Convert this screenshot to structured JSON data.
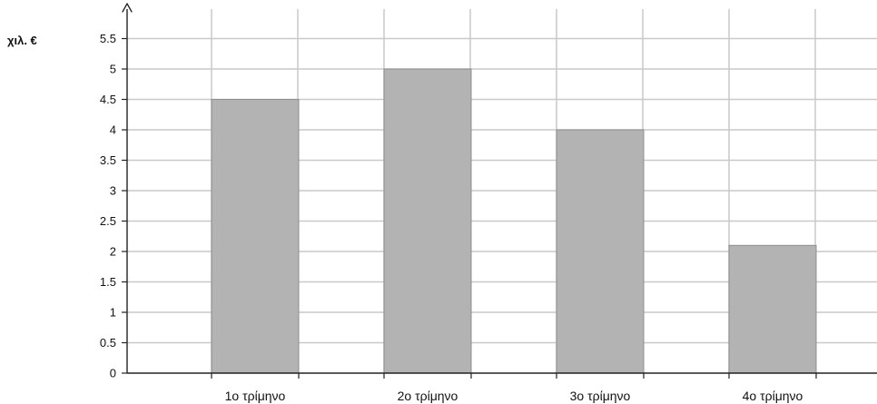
{
  "chart_data": {
    "type": "bar",
    "categories": [
      "1ο τρίμηνο",
      "2ο τρίμηνο",
      "3ο τρίμηνο",
      "4ο τρίμηνο"
    ],
    "values": [
      4.5,
      5,
      4,
      2.1
    ],
    "ylabel": "χιλ. €",
    "ylim": [
      0,
      5.5
    ],
    "yticks": [
      "0",
      "0.5",
      "1",
      "1.5",
      "2",
      "2.5",
      "3",
      "3.5",
      "4",
      "4.5",
      "5",
      "5.5"
    ],
    "grid": true
  },
  "colors": {
    "bar_fill": "#b3b3b3",
    "bar_edge": "#8d8d8d",
    "grid": "#c9c9c9",
    "axis": "#222222",
    "text": "#111111"
  }
}
